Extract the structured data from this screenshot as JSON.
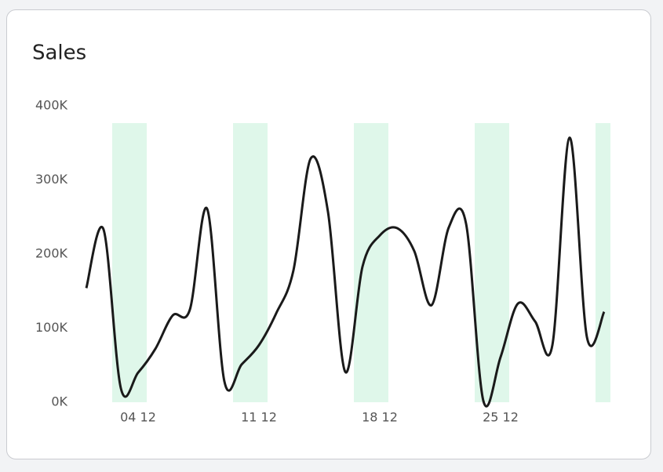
{
  "chart_data": {
    "type": "line",
    "title": "Sales",
    "categories": [
      null,
      null,
      null,
      "04 12",
      null,
      null,
      null,
      null,
      null,
      null,
      "11 12",
      null,
      null,
      null,
      null,
      null,
      null,
      "18 12",
      null,
      null,
      null,
      null,
      null,
      null,
      "25 12",
      null,
      null,
      null,
      null,
      null,
      null
    ],
    "series": [
      {
        "name": "Sales",
        "color": "#1a1a1a",
        "values": [
          154000,
          233000,
          19000,
          40000,
          72000,
          117000,
          125000,
          261000,
          28000,
          51000,
          77000,
          120000,
          178000,
          329000,
          257000,
          41000,
          183000,
          225000,
          235000,
          204000,
          131000,
          236000,
          241000,
          2000,
          61000,
          133000,
          109000,
          77000,
          357000,
          88000,
          122000
        ]
      }
    ],
    "ylim": [
      0,
      400000
    ],
    "yticks": [
      {
        "value": 0,
        "label": "0K"
      },
      {
        "value": 100000,
        "label": "100K"
      },
      {
        "value": 200000,
        "label": "200K"
      },
      {
        "value": 300000,
        "label": "300K"
      },
      {
        "value": 400000,
        "label": "400K"
      }
    ],
    "highlight_indices": [
      2,
      3,
      9,
      10,
      16,
      17,
      23,
      24,
      30
    ],
    "highlight_color": "#dff7ea"
  }
}
